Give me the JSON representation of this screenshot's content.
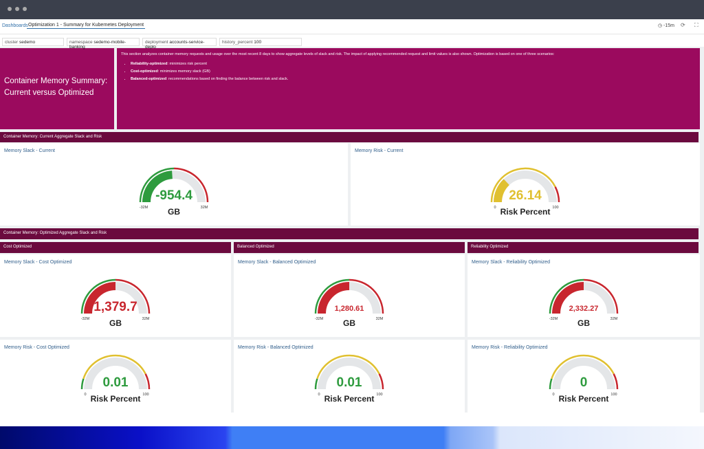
{
  "nav": {
    "breadcrumb": "Dashboards",
    "title": "Optimization 1 - Summary for Kubernetes Deployment",
    "time": "-15m"
  },
  "filters": [
    {
      "label": "cluster",
      "value": "sedemo"
    },
    {
      "label": "namespace",
      "value": "sedemo-mobile-banking"
    },
    {
      "label": "deployment",
      "value": "accounts-service-deplo"
    },
    {
      "label": "history_percent",
      "value": "100"
    }
  ],
  "summary": {
    "title": "Container Memory Summary: Current versus Optimized",
    "intro": "This section analyzes container memory requests and usage over the most recent 8 days to show aggregate levels of slack and risk. The impact of applying recommended request and limit values is also shown. Optimization is based on one of three scenarios:",
    "items": [
      {
        "term": "Reliability-optimized",
        "text": ": minimizes risk percent"
      },
      {
        "term": "Cost-optimized",
        "text": ": minimizes memory slack (GB)"
      },
      {
        "term": "Balanced-optimized",
        "text": ": recommendations based on finding the balance between risk and slack."
      }
    ]
  },
  "sections": [
    "Container Memory: Current Aggregate Slack and Risk",
    "Container Memory: Optimized Aggregate Slack and Risk"
  ],
  "groups": [
    "Cost Optimized",
    "Balanced Optimized",
    "Reliability Optimized"
  ],
  "panels": [
    {
      "title": "Memory Slack - Current",
      "value": -954.4,
      "unit": "GB",
      "min": "-32M",
      "max": "32M",
      "color": "#2e9b3e"
    },
    {
      "title": "Memory Risk - Current",
      "value": 26.14,
      "unit": "Risk Percent",
      "min": 0,
      "max": 100,
      "color": "#e0c030"
    },
    {
      "title": "Memory Slack - Cost Optimized",
      "value": "1,379.7",
      "unit": "GB",
      "min": "-32M",
      "max": "32M",
      "color": "#c8262e"
    },
    {
      "title": "Memory Slack - Balanced Optimized",
      "value": "1,280.61",
      "unit": "GB",
      "min": "-32M",
      "max": "32M",
      "color": "#c8262e"
    },
    {
      "title": "Memory Slack - Reliability Optimized",
      "value": "2,332.27",
      "unit": "GB",
      "min": "-32M",
      "max": "32M",
      "color": "#c8262e"
    },
    {
      "title": "Memory Risk - Cost Optimized",
      "value": 0.01,
      "unit": "Risk Percent",
      "min": 0,
      "max": 100,
      "color": "#2e9b3e"
    },
    {
      "title": "Memory Risk - Balanced Optimized",
      "value": 0.01,
      "unit": "Risk Percent",
      "min": 0,
      "max": 100,
      "color": "#2e9b3e"
    },
    {
      "title": "Memory Risk - Reliability Optimized",
      "value": 0,
      "unit": "Risk Percent",
      "min": 0,
      "max": 100,
      "color": "#2e9b3e"
    }
  ]
}
